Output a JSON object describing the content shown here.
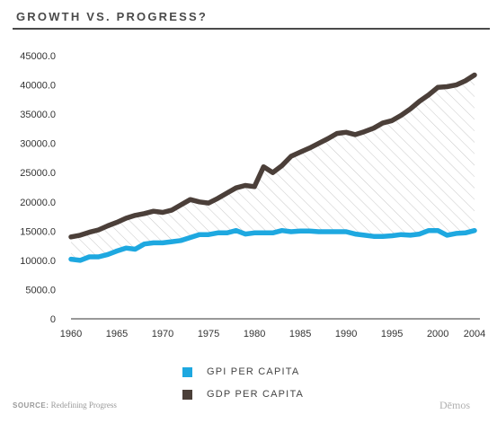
{
  "header": {
    "title": "GROWTH VS. PROGRESS?"
  },
  "legend": [
    {
      "label": "GPI PER CAPITA",
      "color": "#1ea8e0"
    },
    {
      "label": "GDP PER CAPITA",
      "color": "#4b3f39"
    }
  ],
  "footer": {
    "source_key": "SOURCE:",
    "source_value": "Redefining Progress",
    "brand": "Dēmos"
  },
  "chart_data": {
    "type": "area",
    "title": "GROWTH VS. PROGRESS?",
    "xlabel": "",
    "ylabel": "",
    "xlim": [
      1960,
      2004
    ],
    "ylim": [
      0,
      45000
    ],
    "x_ticks": [
      "1960",
      "1965",
      "1970",
      "1975",
      "1980",
      "1985",
      "1990",
      "1995",
      "2000",
      "2004"
    ],
    "y_ticks": [
      "0",
      "5000.0",
      "10000.0",
      "15000.0",
      "20000.0",
      "25000.0",
      "30000.0",
      "35000.0",
      "40000.0",
      "45000.0"
    ],
    "grid": false,
    "fill_between": "hatched",
    "x": [
      1960,
      1961,
      1962,
      1963,
      1964,
      1965,
      1966,
      1967,
      1968,
      1969,
      1970,
      1971,
      1972,
      1973,
      1974,
      1975,
      1976,
      1977,
      1978,
      1979,
      1980,
      1981,
      1982,
      1983,
      1984,
      1985,
      1986,
      1987,
      1988,
      1989,
      1990,
      1991,
      1992,
      1993,
      1994,
      1995,
      1996,
      1997,
      1998,
      1999,
      2000,
      2001,
      2002,
      2003,
      2004
    ],
    "series": [
      {
        "name": "GPI PER CAPITA",
        "color": "#1ea8e0",
        "values": [
          10200,
          10000,
          10600,
          10600,
          11000,
          11600,
          12100,
          11900,
          12800,
          13000,
          13000,
          13200,
          13400,
          13900,
          14400,
          14400,
          14700,
          14700,
          15100,
          14500,
          14700,
          14700,
          14700,
          15100,
          14900,
          15000,
          15000,
          14900,
          14900,
          14900,
          14900,
          14500,
          14300,
          14100,
          14100,
          14200,
          14400,
          14300,
          14500,
          15100,
          15100,
          14300,
          14600,
          14700,
          15100
        ]
      },
      {
        "name": "GDP PER CAPITA",
        "color": "#4b3f39",
        "values": [
          14000,
          14300,
          14800,
          15200,
          15900,
          16500,
          17200,
          17700,
          18000,
          18400,
          18200,
          18600,
          19500,
          20400,
          20000,
          19800,
          20600,
          21500,
          22400,
          22800,
          22600,
          26000,
          25000,
          26200,
          27800,
          28500,
          29200,
          30000,
          30800,
          31700,
          31900,
          31500,
          32000,
          32600,
          33500,
          33900,
          34800,
          35900,
          37200,
          38300,
          39600,
          39700,
          40000,
          40700,
          41700
        ]
      }
    ]
  }
}
